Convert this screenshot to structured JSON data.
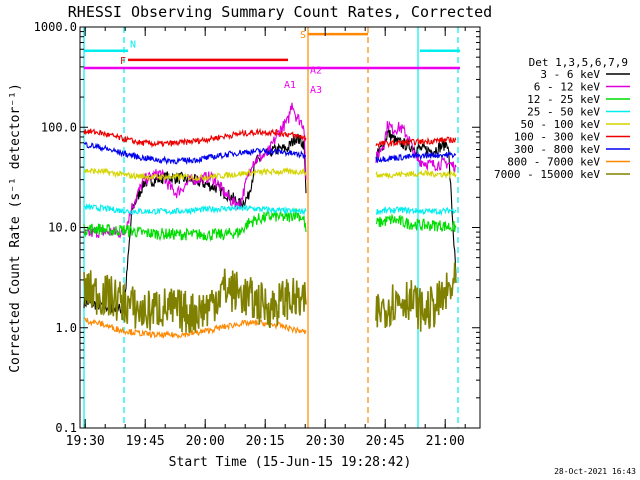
{
  "chart_data": {
    "type": "line",
    "title": "RHESSI Observing Summary Count Rates, Corrected",
    "xlabel": "Start Time (15-Jun-15 19:28:42)",
    "ylabel": "Corrected Count Rate (s⁻¹ detector⁻¹)",
    "y_scale": "log",
    "ylim": [
      0.1,
      1000.0
    ],
    "xlim_minutes": [
      0,
      100
    ],
    "x_ticks": [
      {
        "m": 1.3,
        "label": "19:30"
      },
      {
        "m": 16.3,
        "label": "19:45"
      },
      {
        "m": 31.3,
        "label": "20:00"
      },
      {
        "m": 46.3,
        "label": "20:15"
      },
      {
        "m": 61.3,
        "label": "20:30"
      },
      {
        "m": 76.3,
        "label": "20:45"
      },
      {
        "m": 91.3,
        "label": "21:00"
      }
    ],
    "y_ticks": [
      {
        "v": 1000,
        "label": "1000.0"
      },
      {
        "v": 100,
        "label": "100.0"
      },
      {
        "v": 10,
        "label": "10.0"
      },
      {
        "v": 1,
        "label": "1.0"
      },
      {
        "v": 0.1,
        "label": "0.1"
      }
    ],
    "legend_title": "Det 1,3,5,6,7,9",
    "series": [
      {
        "name": "3 - 6 keV",
        "color": "#000000",
        "segments": [
          [
            [
              1,
              1.8
            ],
            [
              8,
              1.6
            ],
            [
              11,
              1.5
            ],
            [
              13,
              15
            ],
            [
              16,
              28
            ],
            [
              22,
              32
            ],
            [
              28,
              30
            ],
            [
              34,
              25
            ],
            [
              38,
              20
            ],
            [
              40,
              17
            ],
            [
              42,
              20
            ],
            [
              44,
              45
            ],
            [
              48,
              58
            ],
            [
              52,
              62
            ],
            [
              54,
              80
            ],
            [
              56,
              68
            ],
            [
              56.5,
              22
            ]
          ],
          [
            [
              74,
              50
            ],
            [
              76,
              70
            ],
            [
              77,
              88
            ],
            [
              79,
              72
            ],
            [
              84,
              62
            ],
            [
              88,
              58
            ],
            [
              92,
              70
            ],
            [
              94,
              3.2
            ]
          ]
        ]
      },
      {
        "name": "6 - 12 keV",
        "color": "#dd00dd",
        "segments": [
          [
            [
              1,
              8.5
            ],
            [
              4,
              9
            ],
            [
              8,
              9
            ],
            [
              11,
              8.8
            ],
            [
              13,
              16
            ],
            [
              16,
              30
            ],
            [
              20,
              35
            ],
            [
              23,
              24
            ],
            [
              24,
              22
            ],
            [
              28,
              30
            ],
            [
              33,
              32
            ],
            [
              38,
              18
            ],
            [
              40,
              17
            ],
            [
              43,
              45
            ],
            [
              47,
              55
            ],
            [
              50,
              95
            ],
            [
              52,
              115
            ],
            [
              53,
              180
            ],
            [
              54,
              130
            ],
            [
              56,
              105
            ],
            [
              56.5,
              30
            ]
          ],
          [
            [
              74,
              48
            ],
            [
              76,
              70
            ],
            [
              77,
              110
            ],
            [
              78,
              95
            ],
            [
              80,
              100
            ],
            [
              82,
              82
            ],
            [
              84,
              48
            ],
            [
              88,
              42
            ],
            [
              92,
              44
            ],
            [
              94,
              40
            ]
          ]
        ]
      },
      {
        "name": "12 - 25 keV",
        "color": "#00dd00",
        "segments": [
          [
            [
              1,
              9.5
            ],
            [
              4,
              9.8
            ],
            [
              8,
              9.3
            ],
            [
              11,
              9.5
            ],
            [
              16,
              8.8
            ],
            [
              22,
              8.6
            ],
            [
              28,
              8.5
            ],
            [
              36,
              8.5
            ],
            [
              40,
              9
            ],
            [
              42,
              11
            ],
            [
              44,
              12
            ],
            [
              48,
              13
            ],
            [
              52,
              12.5
            ],
            [
              54,
              14
            ],
            [
              56,
              12
            ],
            [
              56.5,
              9
            ]
          ],
          [
            [
              74,
              11
            ],
            [
              78,
              12
            ],
            [
              82,
              11
            ],
            [
              86,
              10.5
            ],
            [
              90,
              10.5
            ],
            [
              94,
              10
            ]
          ]
        ]
      },
      {
        "name": "25 - 50 keV",
        "color": "#00eeee",
        "segments": [
          [
            [
              1,
              16
            ],
            [
              6,
              15.5
            ],
            [
              12,
              14.5
            ],
            [
              18,
              14.5
            ],
            [
              24,
              14.5
            ],
            [
              30,
              15
            ],
            [
              36,
              15.5
            ],
            [
              42,
              15.5
            ],
            [
              48,
              15
            ],
            [
              52,
              14.5
            ],
            [
              56.5,
              14.5
            ]
          ],
          [
            [
              74,
              14.5
            ],
            [
              80,
              15
            ],
            [
              86,
              14.5
            ],
            [
              90,
              14.5
            ],
            [
              94,
              15
            ]
          ]
        ]
      },
      {
        "name": "50 - 100 keV",
        "color": "#d4d400",
        "segments": [
          [
            [
              1,
              37
            ],
            [
              6,
              36
            ],
            [
              12,
              33
            ],
            [
              18,
              32
            ],
            [
              24,
              32
            ],
            [
              30,
              31.5
            ],
            [
              36,
              33
            ],
            [
              42,
              35
            ],
            [
              48,
              36
            ],
            [
              52,
              36
            ],
            [
              56.5,
              36
            ]
          ],
          [
            [
              74,
              33
            ],
            [
              80,
              34
            ],
            [
              86,
              34.5
            ],
            [
              90,
              34
            ],
            [
              94,
              34
            ]
          ]
        ]
      },
      {
        "name": "100 - 300 keV",
        "color": "#ee0000",
        "segments": [
          [
            [
              1,
              92
            ],
            [
              5,
              88
            ],
            [
              10,
              78
            ],
            [
              15,
              70
            ],
            [
              20,
              68
            ],
            [
              25,
              70
            ],
            [
              30,
              74
            ],
            [
              35,
              80
            ],
            [
              40,
              86
            ],
            [
              45,
              90
            ],
            [
              50,
              88
            ],
            [
              54,
              82
            ],
            [
              56.5,
              78
            ]
          ],
          [
            [
              74,
              68
            ],
            [
              80,
              70
            ],
            [
              86,
              72
            ],
            [
              90,
              74
            ],
            [
              94,
              75
            ]
          ]
        ]
      },
      {
        "name": "300 - 800 keV",
        "color": "#0000ee",
        "segments": [
          [
            [
              1,
              68
            ],
            [
              5,
              63
            ],
            [
              10,
              56
            ],
            [
              15,
              50
            ],
            [
              20,
              47
            ],
            [
              25,
              46
            ],
            [
              30,
              48
            ],
            [
              35,
              52
            ],
            [
              40,
              56
            ],
            [
              45,
              58
            ],
            [
              50,
              57
            ],
            [
              54,
              54
            ],
            [
              56.5,
              52
            ]
          ],
          [
            [
              74,
              48
            ],
            [
              80,
              50
            ],
            [
              86,
              52
            ],
            [
              90,
              53
            ],
            [
              94,
              53
            ]
          ]
        ]
      },
      {
        "name": "800 - 7000 keV",
        "color": "#ff8800",
        "segments": [
          [
            [
              1,
              1.2
            ],
            [
              5,
              1.1
            ],
            [
              10,
              0.95
            ],
            [
              15,
              0.88
            ],
            [
              20,
              0.84
            ],
            [
              25,
              0.85
            ],
            [
              30,
              0.9
            ],
            [
              35,
              1.0
            ],
            [
              40,
              1.1
            ],
            [
              45,
              1.12
            ],
            [
              50,
              1.05
            ],
            [
              54,
              0.95
            ],
            [
              56.5,
              0.9
            ]
          ]
        ]
      },
      {
        "name": "7000 - 15000 keV",
        "color": "#808000",
        "segments": [
          [
            [
              1,
              2.4
            ],
            [
              4,
              2.2
            ],
            [
              8,
              2.0
            ],
            [
              12,
              1.7
            ],
            [
              16,
              1.4
            ],
            [
              20,
              1.6
            ],
            [
              24,
              1.5
            ],
            [
              28,
              1.4
            ],
            [
              32,
              1.6
            ],
            [
              36,
              2.5
            ],
            [
              40,
              2.2
            ],
            [
              44,
              1.8
            ],
            [
              48,
              1.6
            ],
            [
              52,
              2.0
            ],
            [
              56.5,
              1.7
            ]
          ],
          [
            [
              74,
              1.4
            ],
            [
              78,
              1.8
            ],
            [
              82,
              2.0
            ],
            [
              86,
              1.4
            ],
            [
              90,
              1.8
            ],
            [
              94,
              2.8
            ]
          ]
        ]
      }
    ],
    "flag_bars": [
      {
        "label": "N",
        "color": "#00eeee",
        "m_start": 1,
        "m_end": 12,
        "v": 580
      },
      {
        "label": "",
        "color": "#00eeee",
        "m_start": 85,
        "m_end": 95,
        "v": 580
      },
      {
        "label": "F",
        "color": "#ee0000",
        "m_start": 12,
        "m_end": 52,
        "v": 470
      },
      {
        "label": "S",
        "color": "#ff8800",
        "m_start": 57,
        "m_end": 72,
        "v": 850
      },
      {
        "label": "",
        "color": "#ee00ee",
        "m_start": 1,
        "m_end": 95,
        "v": 390
      }
    ],
    "vlines": [
      {
        "m": 1,
        "color": "#00eeee",
        "style": "solid"
      },
      {
        "m": 11,
        "color": "#00eeee",
        "style": "dashed"
      },
      {
        "m": 57,
        "color": "#ff8800",
        "style": "solid"
      },
      {
        "m": 72,
        "color": "#ff8800",
        "style": "dashed"
      },
      {
        "m": 84.5,
        "color": "#00eeee",
        "style": "solid"
      },
      {
        "m": 94.5,
        "color": "#00eeee",
        "style": "dashed"
      }
    ],
    "annotations": [
      {
        "text": "A1",
        "color": "#ee00ee",
        "m": 51,
        "v": 245
      },
      {
        "text": "A2",
        "color": "#ee00ee",
        "m": 57.5,
        "v": 345
      },
      {
        "text": "A3",
        "color": "#ee00ee",
        "m": 57.5,
        "v": 220
      }
    ],
    "datestamp": "28-Oct-2021 16:43"
  }
}
